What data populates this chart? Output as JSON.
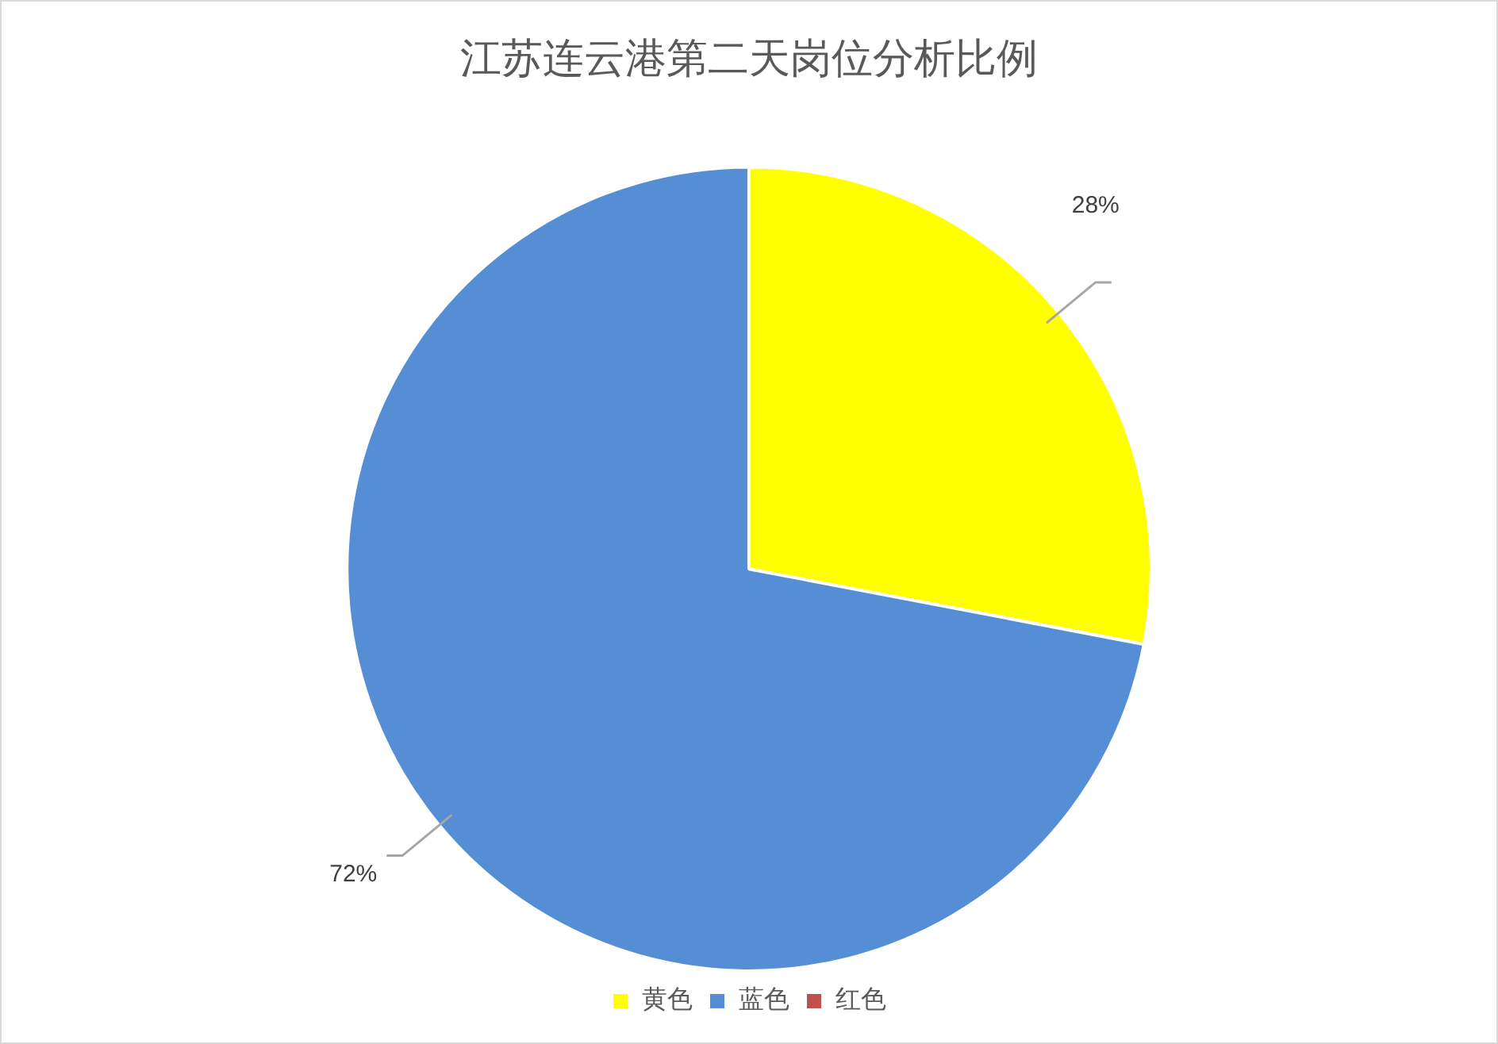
{
  "chart_data": {
    "type": "pie",
    "title": "江苏连云港第二天岗位分析比例",
    "categories": [
      "黄色",
      "蓝色",
      "红色"
    ],
    "values": [
      28,
      72,
      0
    ],
    "colors": [
      "#ffff00",
      "#558ed5",
      "#c0504d"
    ],
    "value_labels": [
      "28%",
      "72%",
      null
    ],
    "legend": "bottom"
  }
}
